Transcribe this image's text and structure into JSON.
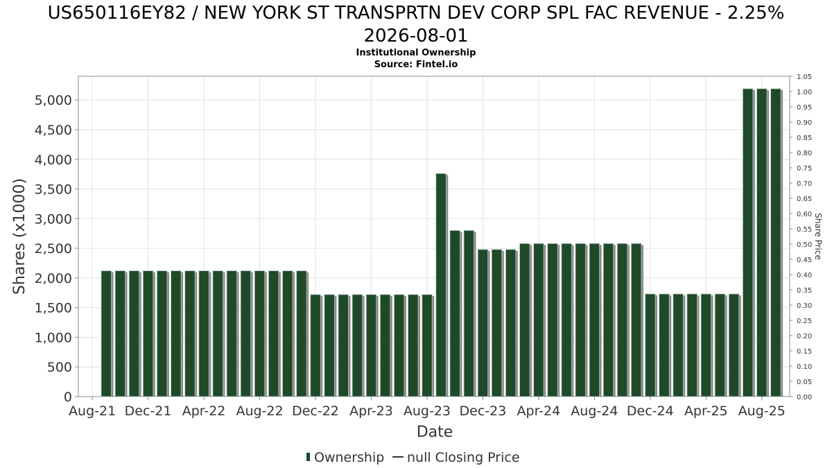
{
  "chart_data": {
    "type": "bar",
    "title_line1": "US650116EY82 / NEW YORK ST TRANSPRTN DEV CORP SPL FAC REVENUE - 2.25%",
    "title_line2": "2026-08-01",
    "subtitle_line1": "Institutional Ownership",
    "subtitle_line2": "Source: Fintel.io",
    "xlabel": "Date",
    "ylabel": "Shares (x1000)",
    "y2label": "Share Price",
    "ylim": [
      0,
      5400
    ],
    "y_ticks": [
      0,
      500,
      1000,
      1500,
      2000,
      2500,
      3000,
      3500,
      4000,
      4500,
      5000
    ],
    "y_tick_labels": [
      "0",
      "500",
      "1,000",
      "1,500",
      "2,000",
      "2,500",
      "3,000",
      "3,500",
      "4,000",
      "4,500",
      "5,000"
    ],
    "y2lim": [
      0,
      1.05
    ],
    "y2_tick_labels": [
      "0.00",
      "0.05",
      "0.10",
      "0.15",
      "0.20",
      "0.25",
      "0.30",
      "0.35",
      "0.40",
      "0.45",
      "0.50",
      "0.55",
      "0.60",
      "0.65",
      "0.70",
      "0.75",
      "0.80",
      "0.85",
      "0.90",
      "0.95",
      "1.00",
      "1.05"
    ],
    "x_tick_labels": [
      "Aug-21",
      "Dec-21",
      "Apr-22",
      "Aug-22",
      "Dec-22",
      "Apr-23",
      "Aug-23",
      "Dec-23",
      "Apr-24",
      "Aug-24",
      "Dec-24",
      "Apr-25",
      "Aug-25"
    ],
    "x_range_months": [
      "2021-07",
      "2025-10"
    ],
    "grid": true,
    "legend_position": "bottom",
    "series": [
      {
        "name": "Ownership",
        "color": "#1e4a2a",
        "points": [
          {
            "date": "2021-09",
            "value": 2120
          },
          {
            "date": "2021-10",
            "value": 2120
          },
          {
            "date": "2021-11",
            "value": 2120
          },
          {
            "date": "2021-12",
            "value": 2120
          },
          {
            "date": "2022-01",
            "value": 2120
          },
          {
            "date": "2022-02",
            "value": 2120
          },
          {
            "date": "2022-03",
            "value": 2120
          },
          {
            "date": "2022-04",
            "value": 2120
          },
          {
            "date": "2022-05",
            "value": 2120
          },
          {
            "date": "2022-06",
            "value": 2120
          },
          {
            "date": "2022-07",
            "value": 2120
          },
          {
            "date": "2022-08",
            "value": 2120
          },
          {
            "date": "2022-09",
            "value": 2120
          },
          {
            "date": "2022-10",
            "value": 2120
          },
          {
            "date": "2022-11",
            "value": 2120
          },
          {
            "date": "2022-12",
            "value": 1720
          },
          {
            "date": "2023-01",
            "value": 1720
          },
          {
            "date": "2023-02",
            "value": 1720
          },
          {
            "date": "2023-03",
            "value": 1720
          },
          {
            "date": "2023-04",
            "value": 1720
          },
          {
            "date": "2023-05",
            "value": 1720
          },
          {
            "date": "2023-06",
            "value": 1720
          },
          {
            "date": "2023-07",
            "value": 1720
          },
          {
            "date": "2023-08",
            "value": 1720
          },
          {
            "date": "2023-09",
            "value": 3760
          },
          {
            "date": "2023-10",
            "value": 2800
          },
          {
            "date": "2023-11",
            "value": 2800
          },
          {
            "date": "2023-12",
            "value": 2480
          },
          {
            "date": "2024-01",
            "value": 2480
          },
          {
            "date": "2024-02",
            "value": 2480
          },
          {
            "date": "2024-03",
            "value": 2580
          },
          {
            "date": "2024-04",
            "value": 2580
          },
          {
            "date": "2024-05",
            "value": 2580
          },
          {
            "date": "2024-06",
            "value": 2580
          },
          {
            "date": "2024-07",
            "value": 2580
          },
          {
            "date": "2024-08",
            "value": 2580
          },
          {
            "date": "2024-09",
            "value": 2580
          },
          {
            "date": "2024-10",
            "value": 2580
          },
          {
            "date": "2024-11",
            "value": 2580
          },
          {
            "date": "2024-12",
            "value": 1730
          },
          {
            "date": "2025-01",
            "value": 1730
          },
          {
            "date": "2025-02",
            "value": 1730
          },
          {
            "date": "2025-03",
            "value": 1730
          },
          {
            "date": "2025-04",
            "value": 1730
          },
          {
            "date": "2025-05",
            "value": 1730
          },
          {
            "date": "2025-06",
            "value": 1730
          },
          {
            "date": "2025-07",
            "value": 5190
          },
          {
            "date": "2025-08",
            "value": 5190
          },
          {
            "date": "2025-09",
            "value": 5190
          }
        ]
      },
      {
        "name": "null Closing Price",
        "color": "#333333",
        "points": []
      }
    ]
  }
}
